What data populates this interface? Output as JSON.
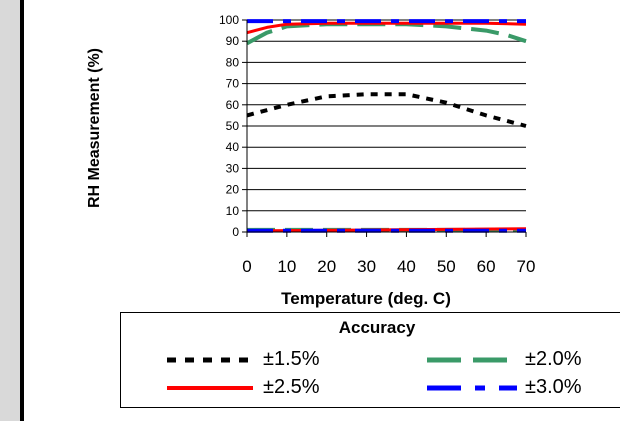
{
  "chart_data": {
    "type": "line",
    "ylabel": "RH Measurement (%)",
    "xlabel": "Temperature (deg. C)",
    "xlim": [
      0,
      70
    ],
    "ylim": [
      0,
      100
    ],
    "x_ticks": [
      0,
      10,
      20,
      30,
      40,
      50,
      60,
      70
    ],
    "y_ticks": [
      0,
      10,
      20,
      30,
      40,
      50,
      60,
      70,
      80,
      90,
      100
    ],
    "grid": "horizontal",
    "legend_title": "Accuracy",
    "legend_placement": "bottom",
    "series": [
      {
        "name": "±1.5%",
        "color": "#000000",
        "style": "dotted",
        "lines": [
          {
            "x": [
              0,
              10,
              20,
              30,
              40,
              50,
              60,
              70
            ],
            "y": [
              55,
              60,
              64,
              65,
              65,
              61,
              55,
              50
            ]
          }
        ]
      },
      {
        "name": "±2.0%",
        "color": "#3a9a68",
        "style": "dashed",
        "lines": [
          {
            "x": [
              0,
              5,
              10,
              20,
              30,
              40,
              50,
              60,
              65,
              70
            ],
            "y": [
              89,
              94,
              97,
              98,
              98,
              98,
              97,
              95,
              93,
              90
            ]
          },
          {
            "x": [
              0,
              70
            ],
            "y": [
              1,
              1
            ]
          }
        ]
      },
      {
        "name": "±2.5%",
        "color": "#ff0000",
        "style": "solid",
        "lines": [
          {
            "x": [
              0,
              5,
              10,
              20,
              30,
              40,
              50,
              60,
              70
            ],
            "y": [
              94,
              96.5,
              98,
              98.5,
              98.5,
              98.5,
              98.5,
              98.5,
              98
            ]
          },
          {
            "x": [
              0,
              70
            ],
            "y": [
              0.5,
              1.5
            ]
          }
        ]
      },
      {
        "name": "±3.0%",
        "color": "#0000ff",
        "style": "dash-dot",
        "lines": [
          {
            "x": [
              0,
              70
            ],
            "y": [
              99.5,
              99.5
            ]
          },
          {
            "x": [
              0,
              70
            ],
            "y": [
              0.6,
              0.6
            ]
          }
        ]
      }
    ]
  }
}
